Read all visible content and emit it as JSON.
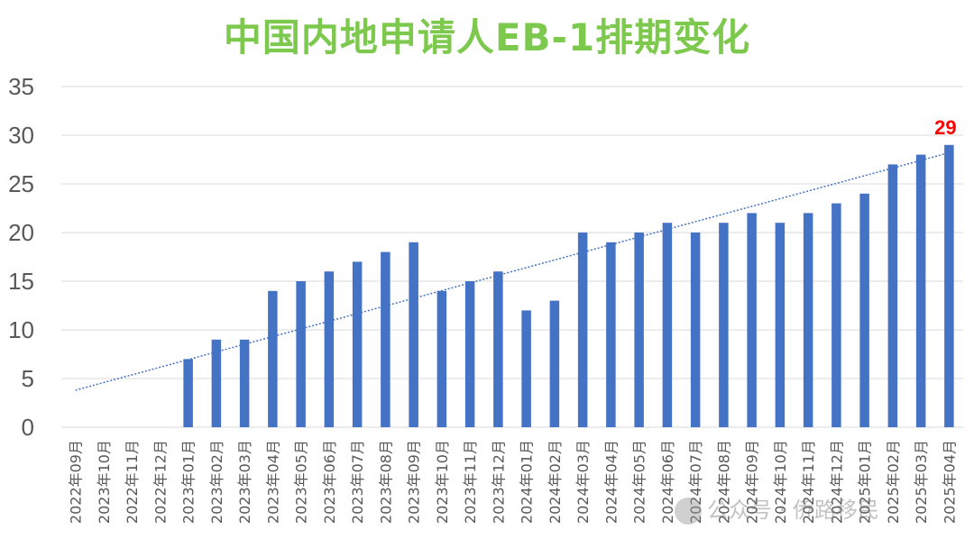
{
  "chart_data": {
    "type": "bar",
    "title": "中国内地申请人EB-1排期变化",
    "categories": [
      "2022年09月",
      "2023年10月",
      "2022年11月",
      "2022年12月",
      "2023年01月",
      "2023年02月",
      "2023年03月",
      "2023年04月",
      "2023年05月",
      "2023年06月",
      "2023年07月",
      "2023年08月",
      "2023年09月",
      "2023年10月",
      "2023年11月",
      "2023年12月",
      "2024年01月",
      "2024年02月",
      "2024年03月",
      "2024年04月",
      "2024年05月",
      "2024年06月",
      "2024年07月",
      "2024年08月",
      "2024年09月",
      "2024年10月",
      "2024年11月",
      "2024年12月",
      "2025年01月",
      "2025年02月",
      "2025年03月",
      "2025年04月"
    ],
    "values": [
      null,
      null,
      null,
      null,
      7,
      9,
      9,
      14,
      15,
      16,
      17,
      18,
      19,
      14,
      15,
      16,
      12,
      13,
      20,
      19,
      20,
      21,
      20,
      21,
      22,
      21,
      22,
      23,
      24,
      27,
      28,
      29
    ],
    "ylim": [
      0,
      35
    ],
    "yticks": [
      0,
      5,
      10,
      15,
      20,
      25,
      30,
      35
    ],
    "trendline": {
      "type": "linear",
      "style": "dotted",
      "start": 3.8,
      "end": 28.2
    },
    "data_labels": [
      {
        "category_index": 31,
        "text": "29"
      }
    ],
    "grid": true,
    "legend": "none",
    "colors": {
      "bar": "#4472c4",
      "title": "#7dc94e",
      "label": "#ff0000",
      "grid": "#d9d9d9",
      "trend": "#4472c4"
    }
  },
  "watermark": {
    "text": "公众号 · 侨路移民"
  }
}
